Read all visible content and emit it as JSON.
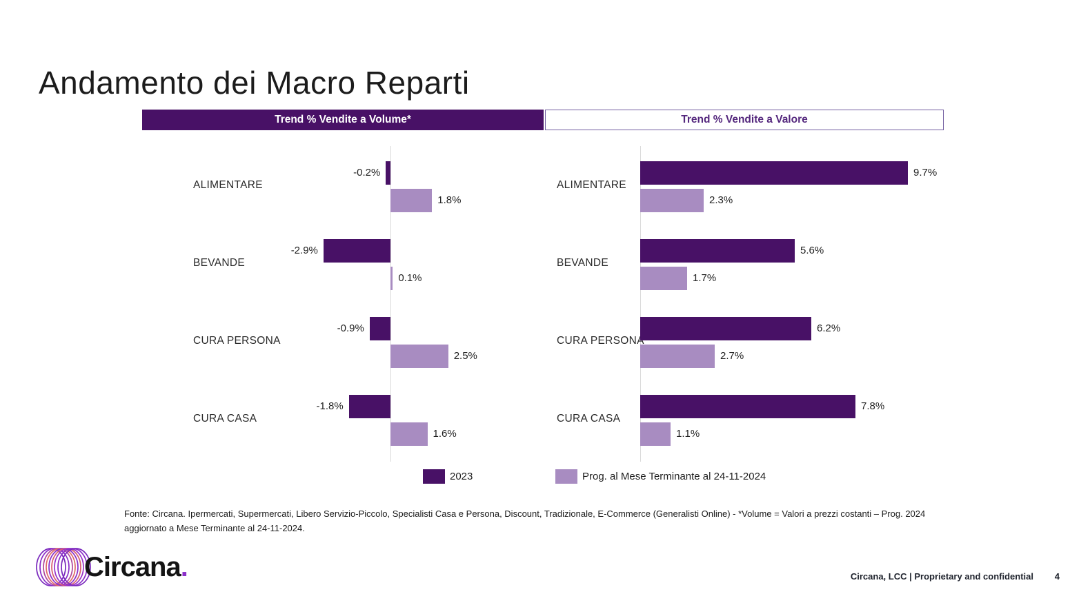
{
  "slide": {
    "title": "Andamento dei Macro Reparti",
    "page_number": "4",
    "footer_right": "Circana, LCC |  Proprietary and confidential",
    "footnote_lines": [
      "Fonte: Circana. Ipermercati, Supermercati, Libero Servizio-Piccolo, Specialisti Casa e Persona, Discount, Tradizionale, E-Commerce (Generalisti Online) - *Volume = Valori a prezzi costanti – Prog. 2024",
      "aggiornato a Mese Terminante al 24-11-2024."
    ],
    "brand": {
      "name": "Circana",
      "dot": "."
    }
  },
  "colors": {
    "dark_purple": "#481166",
    "light_purple": "#a88cc1",
    "axis_gray": "#d9d9d9",
    "header_purple_text": "#54277d"
  },
  "legend": {
    "items": [
      {
        "label": "2023",
        "color": "#481166"
      },
      {
        "label": "Prog. al Mese Terminante al 24-11-2024",
        "color": "#a88cc1"
      }
    ]
  },
  "chart_data": [
    {
      "type": "bar",
      "orientation": "horizontal",
      "title": "Trend % Vendite a Volume*",
      "categories": [
        "ALIMENTARE",
        "BEVANDE",
        "CURA PERSONA",
        "CURA CASA"
      ],
      "series": [
        {
          "name": "2023",
          "color": "#481166",
          "values": [
            -0.2,
            -2.9,
            -0.9,
            -1.8
          ]
        },
        {
          "name": "Prog. al Mese Terminante al 24-11-2024",
          "color": "#a88cc1",
          "values": [
            1.8,
            0.1,
            2.5,
            1.6
          ]
        }
      ],
      "value_suffix": "%",
      "xlim": [
        -10.75,
        6.63
      ],
      "grid": false,
      "value_labels": "outside-end"
    },
    {
      "type": "bar",
      "orientation": "horizontal",
      "title": "Trend % Vendite a Valore",
      "categories": [
        "ALIMENTARE",
        "BEVANDE",
        "CURA PERSONA",
        "CURA CASA"
      ],
      "series": [
        {
          "name": "2023",
          "color": "#481166",
          "values": [
            9.7,
            5.6,
            6.2,
            7.8
          ]
        },
        {
          "name": "Prog. al Mese Terminante al 24-11-2024",
          "color": "#a88cc1",
          "values": [
            2.3,
            1.7,
            2.7,
            1.1
          ]
        }
      ],
      "value_suffix": "%",
      "xlim": [
        -3.45,
        11.0
      ],
      "grid": false,
      "value_labels": "outside-end"
    }
  ]
}
